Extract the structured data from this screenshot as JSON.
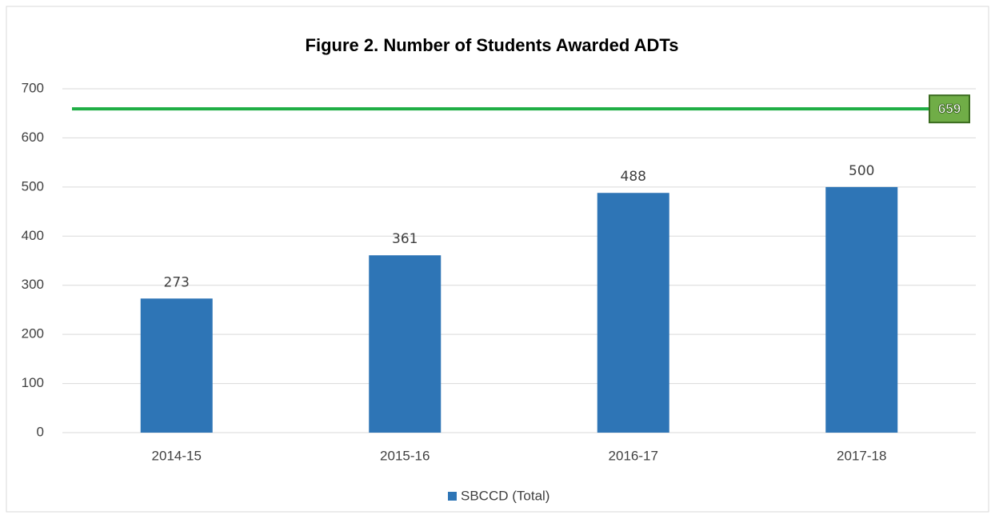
{
  "chart_data": {
    "type": "bar",
    "title": "Figure 2. Number of Students Awarded ADTs",
    "categories": [
      "2014-15",
      "2015-16",
      "2016-17",
      "2017-18"
    ],
    "series": [
      {
        "name": "SBCCD (Total)",
        "color": "#2e75b6",
        "values": [
          273,
          361,
          488,
          500
        ]
      }
    ],
    "target_line": {
      "value": 659,
      "color": "#1fae45"
    },
    "ylim": [
      0,
      700
    ],
    "yticks": [
      0,
      100,
      200,
      300,
      400,
      500,
      600,
      700
    ],
    "grid": true,
    "legend": "bottom"
  }
}
